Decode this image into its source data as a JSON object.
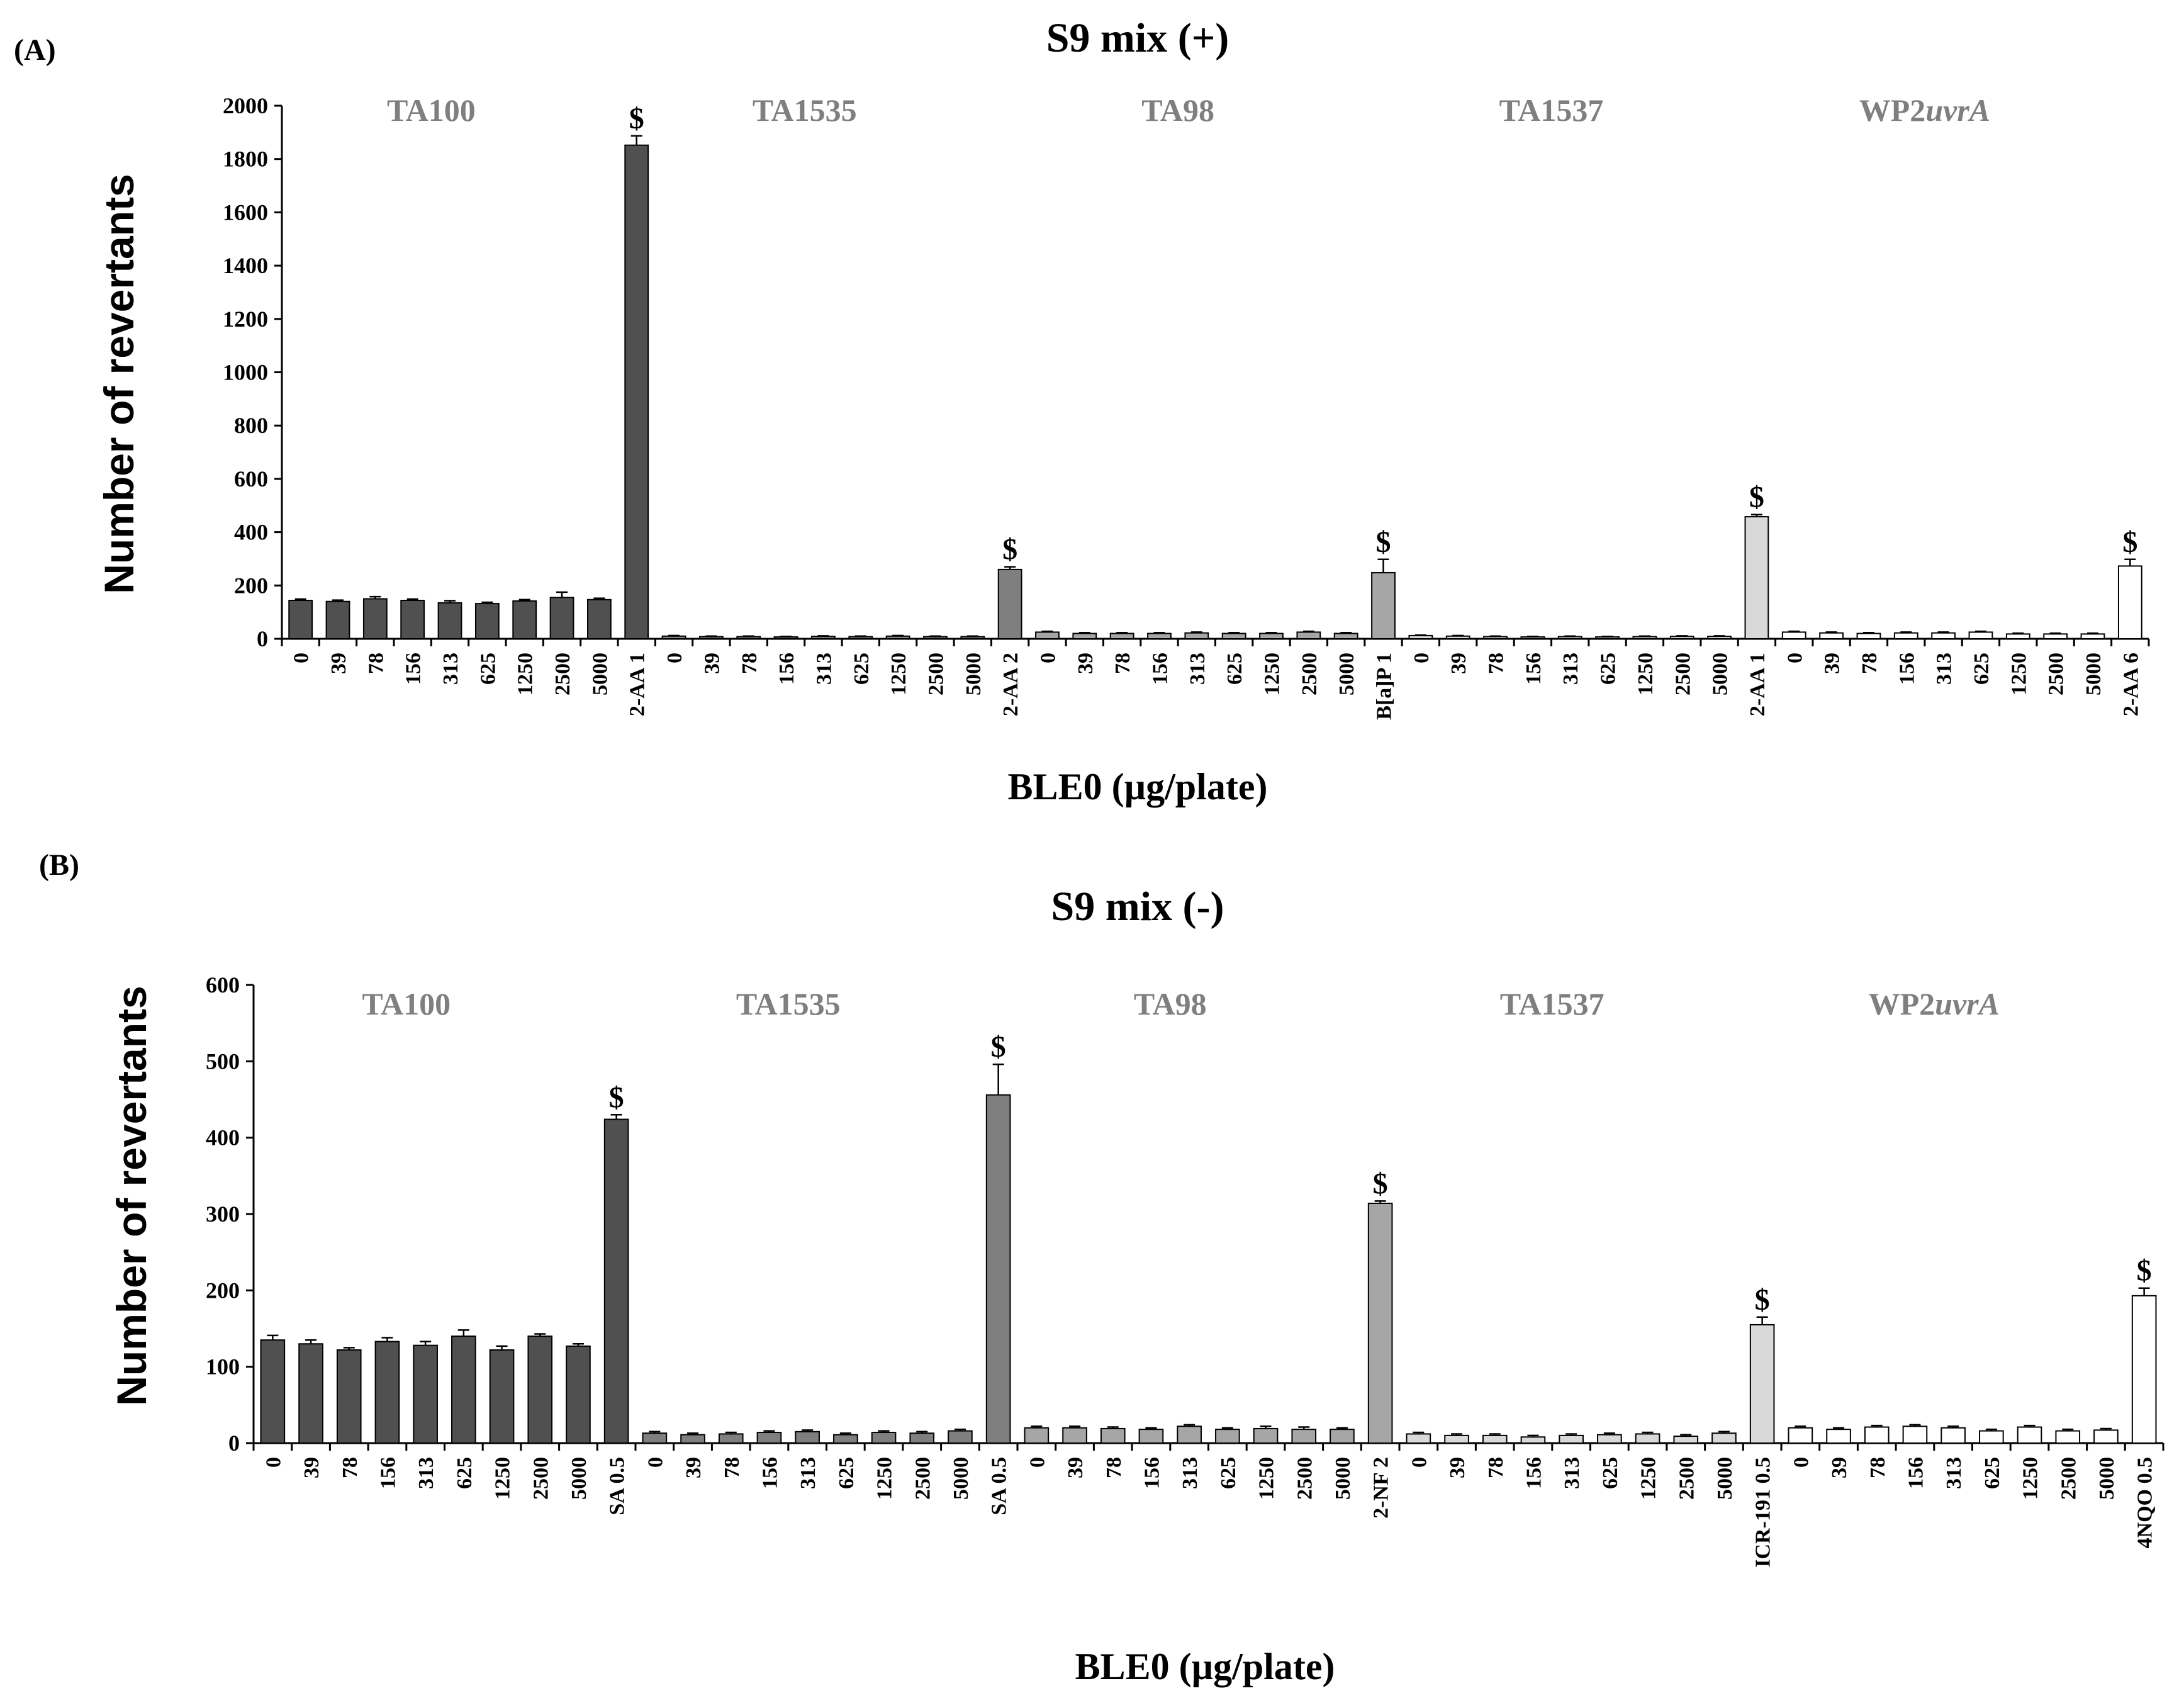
{
  "chart_data": [
    {
      "type": "bar",
      "panel_label": "(A)",
      "title": "S9 mix (+)",
      "xlabel": "BLE0 (µg/plate)",
      "ylabel": "Number of revertants",
      "ylim": [
        0,
        2000
      ],
      "ytick_values": [
        0,
        200,
        400,
        600,
        800,
        1000,
        1200,
        1400,
        1600,
        1800,
        2000
      ],
      "ytick_labels": [
        "0",
        "200",
        "400",
        "600",
        "800",
        "1000",
        "1200",
        "1400",
        "1600",
        "1800",
        "2000"
      ],
      "significance_marker": "$",
      "groups": [
        {
          "strain": "TA100",
          "strain_parts": [
            {
              "text": "TA100",
              "italic": false
            }
          ],
          "color": "#505050",
          "categories": [
            "0",
            "39",
            "78",
            "156",
            "313",
            "625",
            "1250",
            "2500",
            "5000",
            "2-AA 1"
          ],
          "values": [
            144,
            140,
            150,
            144,
            135,
            132,
            142,
            155,
            147,
            1852
          ],
          "errors": [
            5,
            5,
            8,
            5,
            8,
            5,
            5,
            20,
            5,
            35
          ],
          "significant": [
            false,
            false,
            false,
            false,
            false,
            false,
            false,
            false,
            false,
            true
          ]
        },
        {
          "strain": "TA1535",
          "strain_parts": [
            {
              "text": "TA1535",
              "italic": false
            }
          ],
          "color": "#7f7f7f",
          "categories": [
            "0",
            "39",
            "78",
            "156",
            "313",
            "625",
            "1250",
            "2500",
            "5000",
            "2-AA 2"
          ],
          "values": [
            10,
            8,
            8,
            7,
            9,
            8,
            10,
            8,
            8,
            260
          ],
          "errors": [
            2,
            2,
            2,
            2,
            2,
            2,
            2,
            2,
            2,
            10
          ],
          "significant": [
            false,
            false,
            false,
            false,
            false,
            false,
            false,
            false,
            false,
            true
          ]
        },
        {
          "strain": "TA98",
          "strain_parts": [
            {
              "text": "TA98",
              "italic": false
            }
          ],
          "color": "#a6a6a6",
          "categories": [
            "0",
            "39",
            "78",
            "156",
            "313",
            "625",
            "1250",
            "2500",
            "5000",
            "B[a]P 1"
          ],
          "values": [
            25,
            20,
            20,
            20,
            22,
            20,
            20,
            25,
            20,
            248
          ],
          "errors": [
            3,
            3,
            3,
            3,
            3,
            3,
            3,
            3,
            3,
            50
          ],
          "significant": [
            false,
            false,
            false,
            false,
            false,
            false,
            false,
            false,
            false,
            true
          ]
        },
        {
          "strain": "TA1537",
          "strain_parts": [
            {
              "text": "TA1537",
              "italic": false
            }
          ],
          "color": "#d9d9d9",
          "categories": [
            "0",
            "39",
            "78",
            "156",
            "313",
            "625",
            "1250",
            "2500",
            "5000",
            "2-AA 1"
          ],
          "values": [
            12,
            10,
            8,
            7,
            8,
            7,
            8,
            9,
            9,
            458
          ],
          "errors": [
            2,
            2,
            2,
            2,
            2,
            2,
            2,
            2,
            2,
            8
          ],
          "significant": [
            false,
            false,
            false,
            false,
            false,
            false,
            false,
            false,
            false,
            true
          ]
        },
        {
          "strain": "WP2uvrA",
          "strain_parts": [
            {
              "text": "WP2",
              "italic": false
            },
            {
              "text": "uvrA",
              "italic": true
            }
          ],
          "color": "#ffffff",
          "categories": [
            "0",
            "39",
            "78",
            "156",
            "313",
            "625",
            "1250",
            "2500",
            "5000",
            "2-AA 6"
          ],
          "values": [
            25,
            22,
            20,
            22,
            22,
            25,
            18,
            18,
            18,
            273
          ],
          "errors": [
            3,
            3,
            3,
            3,
            3,
            3,
            3,
            3,
            3,
            25
          ],
          "significant": [
            false,
            false,
            false,
            false,
            false,
            false,
            false,
            false,
            false,
            true
          ]
        }
      ]
    },
    {
      "type": "bar",
      "panel_label": "(B)",
      "title": "S9 mix (-)",
      "xlabel": "BLE0 (µg/plate)",
      "ylabel": "Number of revertants",
      "ylim": [
        0,
        600
      ],
      "ytick_values": [
        0,
        100,
        200,
        300,
        400,
        500,
        600
      ],
      "ytick_labels": [
        "0",
        "100",
        "200",
        "300",
        "400",
        "500",
        "600"
      ],
      "significance_marker": "$",
      "groups": [
        {
          "strain": "TA100",
          "strain_parts": [
            {
              "text": "TA100",
              "italic": false
            }
          ],
          "color": "#505050",
          "categories": [
            "0",
            "39",
            "78",
            "156",
            "313",
            "625",
            "1250",
            "2500",
            "5000",
            "SA 0.5"
          ],
          "values": [
            135,
            130,
            122,
            133,
            128,
            140,
            122,
            140,
            127,
            424
          ],
          "errors": [
            6,
            5,
            3,
            5,
            5,
            8,
            5,
            3,
            3,
            6
          ],
          "significant": [
            false,
            false,
            false,
            false,
            false,
            false,
            false,
            false,
            false,
            true
          ]
        },
        {
          "strain": "TA1535",
          "strain_parts": [
            {
              "text": "TA1535",
              "italic": false
            }
          ],
          "color": "#7f7f7f",
          "categories": [
            "0",
            "39",
            "78",
            "156",
            "313",
            "625",
            "1250",
            "2500",
            "5000",
            "SA 0.5"
          ],
          "values": [
            13,
            11,
            12,
            14,
            15,
            11,
            14,
            13,
            16,
            456
          ],
          "errors": [
            2,
            2,
            2,
            2,
            2,
            2,
            2,
            2,
            2,
            40
          ],
          "significant": [
            false,
            false,
            false,
            false,
            false,
            false,
            false,
            false,
            false,
            true
          ]
        },
        {
          "strain": "TA98",
          "strain_parts": [
            {
              "text": "TA98",
              "italic": false
            }
          ],
          "color": "#a6a6a6",
          "categories": [
            "0",
            "39",
            "78",
            "156",
            "313",
            "625",
            "1250",
            "2500",
            "5000",
            "2-NF 2"
          ],
          "values": [
            20,
            20,
            19,
            18,
            22,
            18,
            19,
            18,
            18,
            314
          ],
          "errors": [
            2,
            2,
            2,
            2,
            2,
            2,
            3,
            3,
            2,
            3
          ],
          "significant": [
            false,
            false,
            false,
            false,
            false,
            false,
            false,
            false,
            false,
            true
          ]
        },
        {
          "strain": "TA1537",
          "strain_parts": [
            {
              "text": "TA1537",
              "italic": false
            }
          ],
          "color": "#d9d9d9",
          "categories": [
            "0",
            "39",
            "78",
            "156",
            "313",
            "625",
            "1250",
            "2500",
            "5000",
            "ICR-191 0.5"
          ],
          "values": [
            12,
            10,
            10,
            8,
            10,
            11,
            12,
            9,
            13,
            155
          ],
          "errors": [
            2,
            2,
            2,
            2,
            2,
            2,
            2,
            2,
            2,
            10
          ],
          "significant": [
            false,
            false,
            false,
            false,
            false,
            false,
            false,
            false,
            false,
            true
          ]
        },
        {
          "strain": "WP2uvrA",
          "strain_parts": [
            {
              "text": "WP2",
              "italic": false
            },
            {
              "text": "uvrA",
              "italic": true
            }
          ],
          "color": "#ffffff",
          "categories": [
            "0",
            "39",
            "78",
            "156",
            "313",
            "625",
            "1250",
            "2500",
            "5000",
            "4NQO 0.5"
          ],
          "values": [
            20,
            18,
            21,
            22,
            20,
            16,
            21,
            16,
            17,
            193
          ],
          "errors": [
            2,
            2,
            2,
            2,
            2,
            2,
            2,
            2,
            2,
            10
          ],
          "significant": [
            false,
            false,
            false,
            false,
            false,
            false,
            false,
            false,
            false,
            true
          ]
        }
      ]
    }
  ]
}
